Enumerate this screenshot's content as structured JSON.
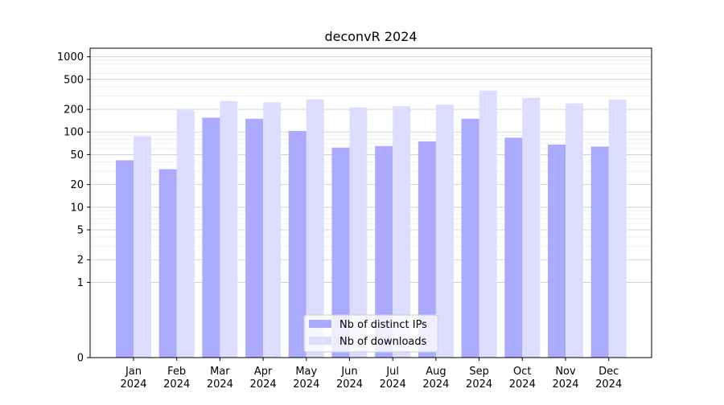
{
  "chart_data": {
    "type": "bar",
    "title": "deconvR 2024",
    "xlabel": "",
    "ylabel": "",
    "yscale": "symlog",
    "ylim": [
      0,
      1300
    ],
    "yticks": [
      0,
      1,
      2,
      5,
      10,
      20,
      50,
      100,
      200,
      500,
      1000
    ],
    "ytick_labels": [
      "0",
      "1",
      "2",
      "5",
      "10",
      "20",
      "50",
      "100",
      "200",
      "500",
      "1000"
    ],
    "categories": [
      "Jan\n2024",
      "Feb\n2024",
      "Mar\n2024",
      "Apr\n2024",
      "May\n2024",
      "Jun\n2024",
      "Jul\n2024",
      "Aug\n2024",
      "Sep\n2024",
      "Oct\n2024",
      "Nov\n2024",
      "Dec\n2024"
    ],
    "series": [
      {
        "name": "Nb of distinct IPs",
        "color": "#aaaaff",
        "values": [
          42,
          32,
          155,
          150,
          103,
          62,
          65,
          75,
          150,
          84,
          68,
          64
        ]
      },
      {
        "name": "Nb of downloads",
        "color": "#ddddff",
        "values": [
          88,
          195,
          258,
          248,
          272,
          212,
          220,
          230,
          355,
          285,
          240,
          270
        ]
      }
    ],
    "grid": true,
    "legend_position": "lower-center"
  }
}
